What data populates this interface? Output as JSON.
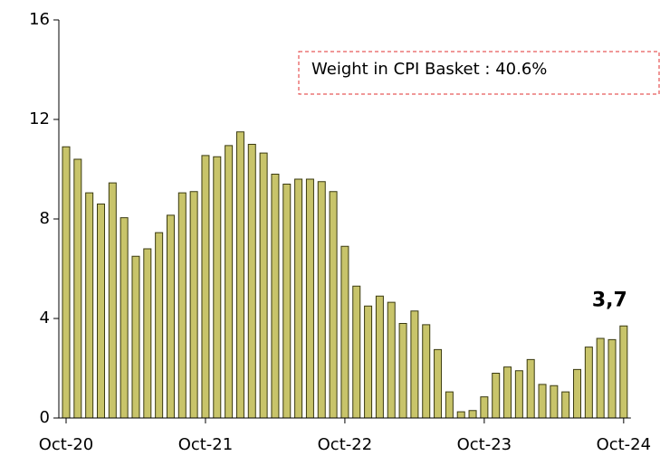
{
  "chart_data": {
    "type": "bar",
    "categories": [
      "Oct-20",
      null,
      null,
      null,
      null,
      null,
      null,
      null,
      null,
      null,
      null,
      null,
      "Oct-21",
      null,
      null,
      null,
      null,
      null,
      null,
      null,
      null,
      null,
      null,
      null,
      "Oct-22",
      null,
      null,
      null,
      null,
      null,
      null,
      null,
      null,
      null,
      null,
      null,
      "Oct-23",
      null,
      null,
      null,
      null,
      null,
      null,
      null,
      null,
      null,
      null,
      null,
      "Oct-24"
    ],
    "values": [
      10.9,
      10.4,
      9.05,
      8.6,
      9.45,
      8.05,
      6.5,
      6.8,
      7.45,
      8.15,
      9.05,
      9.1,
      10.55,
      10.5,
      10.95,
      11.5,
      11.0,
      10.65,
      9.8,
      9.4,
      9.6,
      9.6,
      9.5,
      9.1,
      6.9,
      5.3,
      4.5,
      4.9,
      4.65,
      3.8,
      4.3,
      3.75,
      2.75,
      1.05,
      0.25,
      0.3,
      0.85,
      1.8,
      2.05,
      1.9,
      2.35,
      1.35,
      1.3,
      1.05,
      1.95,
      2.85,
      3.2,
      3.15,
      3.7
    ],
    "value_labels": [
      null,
      null,
      null,
      null,
      null,
      null,
      null,
      null,
      null,
      null,
      null,
      null,
      null,
      null,
      null,
      null,
      null,
      null,
      null,
      null,
      null,
      null,
      null,
      null,
      null,
      null,
      null,
      null,
      null,
      null,
      null,
      null,
      null,
      null,
      null,
      null,
      null,
      null,
      null,
      null,
      null,
      null,
      null,
      null,
      null,
      null,
      null,
      null,
      "3,7"
    ],
    "color": "#c8c46a",
    "annotation": "Weight in CPI Basket : 40.6%",
    "ylim": [
      0,
      16
    ],
    "yticks": [
      0,
      4,
      8,
      12,
      16
    ],
    "grid": false
  }
}
